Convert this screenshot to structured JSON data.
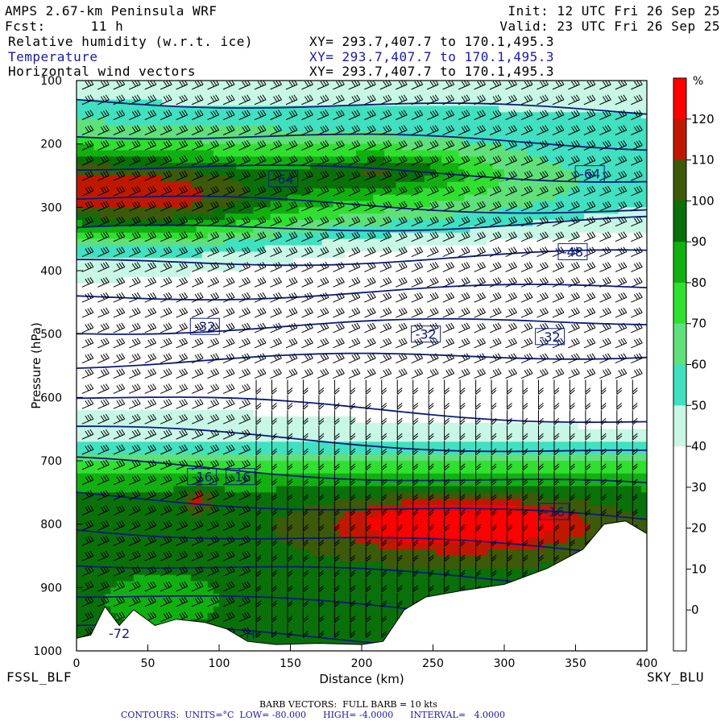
{
  "header": {
    "model": "AMPS 2.67-km Peninsula WRF",
    "fcst_label": "Fcst:",
    "fcst_value": "11 h",
    "init": "Init: 12 UTC Fri 26 Sep 25",
    "valid": "Valid: 23 UTC Fri 26 Sep 25",
    "fields": [
      {
        "name": "Relative humidity (w.r.t. ice)",
        "xy": "XY= 293.7,407.7 to 170.1,495.3"
      },
      {
        "name": "Temperature",
        "xy": "XY= 293.7,407.7 to 170.1,495.3"
      },
      {
        "name": "Horizontal wind vectors",
        "xy": "XY= 293.7,407.7 to 170.1,495.3"
      }
    ]
  },
  "footer": {
    "left_station": "FSSL_BLF",
    "right_station": "SKY_BLU",
    "barb_note": "BARB VECTORS:  FULL BARB = 10 kts",
    "contours": "CONTOURS:  UNITS=°C  LOW= -80.000      HIGH= -4.0000      INTERVAL=   4.0000"
  },
  "colors": {
    "bands": [
      "#ffffff",
      "#ffffff",
      "#ffffff",
      "#ffffff",
      "#c8f7e6",
      "#40e0c0",
      "#60e07a",
      "#30e030",
      "#10b010",
      "#0a700a",
      "#3c5a0a",
      "#c01800",
      "#ff0000"
    ],
    "contour": "#0a1a80",
    "terrain": "#ffffff"
  },
  "chart_data": {
    "type": "heatmap",
    "title": "Relative humidity (w.r.t. ice), Temperature, Horizontal wind vectors",
    "xlabel": "Distance (km)",
    "ylabel": "Pressure (hPa)",
    "xlim": [
      0,
      400
    ],
    "ylim": [
      1000,
      100
    ],
    "x_ticks": [
      "0",
      "50",
      "100",
      "150",
      "200",
      "250",
      "300",
      "350",
      "400"
    ],
    "y_ticks": [
      "100",
      "200",
      "300",
      "400",
      "500",
      "600",
      "700",
      "800",
      "900",
      "1000"
    ],
    "colorbar": {
      "unit": "%",
      "levels": [
        "120",
        "110",
        "100",
        "90",
        "80",
        "70",
        "60",
        "50",
        "40",
        "30",
        "20",
        "10",
        "0"
      ]
    },
    "contour_labels": [
      {
        "text": "-64",
        "x": 145,
        "p": 255
      },
      {
        "text": "-64",
        "x": 360,
        "p": 247
      },
      {
        "text": "-48",
        "x": 348,
        "p": 370
      },
      {
        "text": "-32",
        "x": 90,
        "p": 488
      },
      {
        "text": "-32",
        "x": 245,
        "p": 500
      },
      {
        "text": "-32",
        "x": 332,
        "p": 504
      },
      {
        "text": "-16",
        "x": 88,
        "p": 725
      },
      {
        "text": "-16",
        "x": 115,
        "p": 725
      },
      {
        "text": "-16",
        "x": 335,
        "p": 780
      },
      {
        "text": "-72",
        "x": 30,
        "p": 972
      },
      {
        "text": "H",
        "x": 122,
        "p": 973
      }
    ],
    "temperature_contours_C": [
      -68,
      -64,
      -60,
      -56,
      -52,
      -48,
      -44,
      -40,
      -36,
      -32,
      -28,
      -24,
      -20,
      -16,
      -12,
      -8,
      -4
    ]
  }
}
